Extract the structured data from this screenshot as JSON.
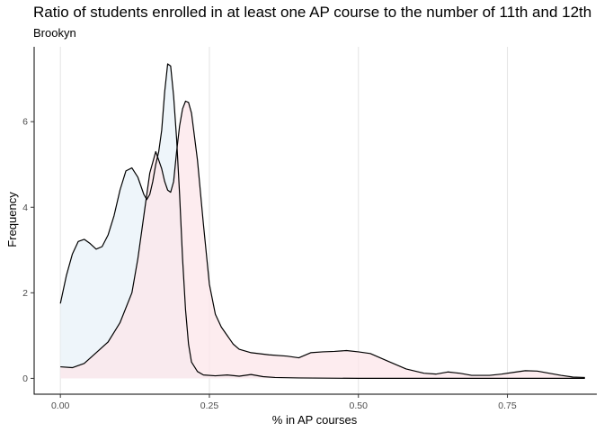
{
  "chart_data": {
    "type": "area",
    "title": "Ratio of students enrolled in at least one AP course to the number of 11th and 12th",
    "subtitle": "Brookyn",
    "xlabel": "% in AP courses",
    "ylabel": "Frequency",
    "xlim": [
      -0.044,
      0.9
    ],
    "ylim": [
      -0.37,
      7.75
    ],
    "x_ticks": [
      0.0,
      0.25,
      0.5,
      0.75
    ],
    "x_tick_labels": [
      "0.00",
      "0.25",
      "0.50",
      "0.75"
    ],
    "y_ticks": [
      0,
      2,
      4,
      6
    ],
    "y_tick_labels": [
      "0",
      "2",
      "4",
      "6"
    ],
    "grid": "vertical major",
    "legend": "none",
    "series": [
      {
        "fill": "#e8f1f8",
        "points": [
          [
            0.0,
            1.75
          ],
          [
            0.01,
            2.4
          ],
          [
            0.02,
            2.9
          ],
          [
            0.03,
            3.2
          ],
          [
            0.04,
            3.25
          ],
          [
            0.05,
            3.15
          ],
          [
            0.06,
            3.02
          ],
          [
            0.07,
            3.08
          ],
          [
            0.08,
            3.35
          ],
          [
            0.09,
            3.8
          ],
          [
            0.1,
            4.4
          ],
          [
            0.11,
            4.85
          ],
          [
            0.12,
            4.92
          ],
          [
            0.13,
            4.7
          ],
          [
            0.14,
            4.3
          ],
          [
            0.145,
            4.18
          ],
          [
            0.15,
            4.3
          ],
          [
            0.155,
            4.6
          ],
          [
            0.16,
            5.0
          ],
          [
            0.165,
            5.3
          ],
          [
            0.17,
            5.8
          ],
          [
            0.175,
            6.7
          ],
          [
            0.18,
            7.35
          ],
          [
            0.185,
            7.3
          ],
          [
            0.19,
            6.6
          ],
          [
            0.195,
            5.6
          ],
          [
            0.2,
            4.3
          ],
          [
            0.205,
            2.8
          ],
          [
            0.21,
            1.6
          ],
          [
            0.215,
            0.8
          ],
          [
            0.22,
            0.38
          ],
          [
            0.23,
            0.16
          ],
          [
            0.24,
            0.08
          ],
          [
            0.26,
            0.06
          ],
          [
            0.28,
            0.08
          ],
          [
            0.3,
            0.05
          ],
          [
            0.32,
            0.09
          ],
          [
            0.34,
            0.04
          ],
          [
            0.36,
            0.02
          ],
          [
            0.4,
            0.01
          ],
          [
            0.5,
            0.0
          ],
          [
            0.6,
            0.0
          ],
          [
            0.7,
            0.0
          ],
          [
            0.8,
            0.0
          ],
          [
            0.88,
            0.0
          ]
        ]
      },
      {
        "fill": "#fce6ea",
        "points": [
          [
            0.0,
            0.27
          ],
          [
            0.02,
            0.25
          ],
          [
            0.04,
            0.35
          ],
          [
            0.06,
            0.6
          ],
          [
            0.08,
            0.85
          ],
          [
            0.1,
            1.3
          ],
          [
            0.12,
            2.0
          ],
          [
            0.13,
            2.8
          ],
          [
            0.14,
            3.8
          ],
          [
            0.15,
            4.8
          ],
          [
            0.16,
            5.3
          ],
          [
            0.17,
            4.9
          ],
          [
            0.175,
            4.6
          ],
          [
            0.18,
            4.4
          ],
          [
            0.185,
            4.35
          ],
          [
            0.19,
            4.6
          ],
          [
            0.195,
            5.3
          ],
          [
            0.2,
            5.9
          ],
          [
            0.205,
            6.3
          ],
          [
            0.21,
            6.48
          ],
          [
            0.215,
            6.45
          ],
          [
            0.22,
            6.2
          ],
          [
            0.23,
            5.1
          ],
          [
            0.24,
            3.6
          ],
          [
            0.25,
            2.2
          ],
          [
            0.26,
            1.5
          ],
          [
            0.27,
            1.2
          ],
          [
            0.28,
            1.0
          ],
          [
            0.29,
            0.8
          ],
          [
            0.3,
            0.68
          ],
          [
            0.32,
            0.6
          ],
          [
            0.35,
            0.55
          ],
          [
            0.38,
            0.52
          ],
          [
            0.4,
            0.48
          ],
          [
            0.42,
            0.6
          ],
          [
            0.44,
            0.62
          ],
          [
            0.46,
            0.63
          ],
          [
            0.48,
            0.65
          ],
          [
            0.5,
            0.62
          ],
          [
            0.52,
            0.58
          ],
          [
            0.55,
            0.4
          ],
          [
            0.58,
            0.22
          ],
          [
            0.61,
            0.12
          ],
          [
            0.63,
            0.1
          ],
          [
            0.65,
            0.15
          ],
          [
            0.67,
            0.12
          ],
          [
            0.69,
            0.07
          ],
          [
            0.72,
            0.07
          ],
          [
            0.74,
            0.1
          ],
          [
            0.76,
            0.14
          ],
          [
            0.78,
            0.18
          ],
          [
            0.8,
            0.17
          ],
          [
            0.82,
            0.12
          ],
          [
            0.84,
            0.07
          ],
          [
            0.86,
            0.03
          ],
          [
            0.88,
            0.02
          ]
        ]
      }
    ]
  }
}
